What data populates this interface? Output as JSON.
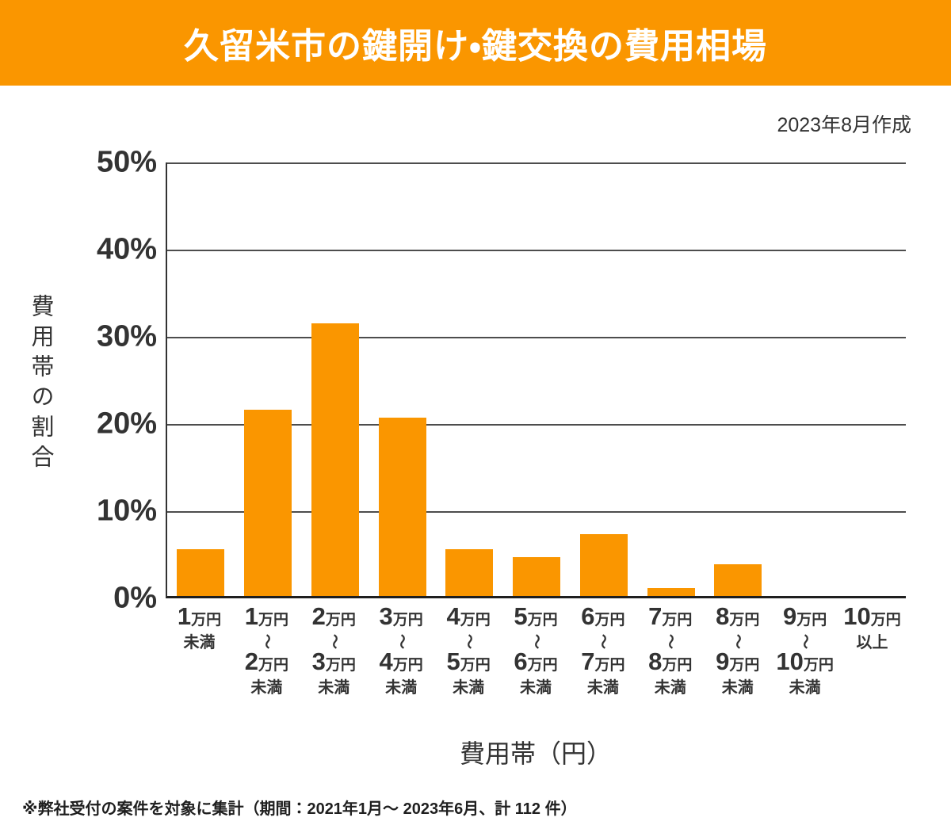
{
  "header": {
    "title": "久留米市の鍵開け・鍵交換の費用相場",
    "bg_color": "#FA9600",
    "text_color": "#FFFFFF"
  },
  "meta": {
    "created_label": "2023年8月作成"
  },
  "chart_data": {
    "type": "bar",
    "title": "久留米市の鍵開け・鍵交換の費用相場",
    "xlabel": "費用帯（円）",
    "ylabel": "費用帯の割合",
    "ylim": [
      0,
      50
    ],
    "ytick_step": 10,
    "ytick_suffix": "%",
    "grid": true,
    "legend": "none",
    "bar_color": "#FA9600",
    "categories": [
      [
        "1万円",
        "未満"
      ],
      [
        "1万円",
        "〜",
        "2万円",
        "未満"
      ],
      [
        "2万円",
        "〜",
        "3万円",
        "未満"
      ],
      [
        "3万円",
        "〜",
        "4万円",
        "未満"
      ],
      [
        "4万円",
        "〜",
        "5万円",
        "未満"
      ],
      [
        "5万円",
        "〜",
        "6万円",
        "未満"
      ],
      [
        "6万円",
        "〜",
        "7万円",
        "未満"
      ],
      [
        "7万円",
        "〜",
        "8万円",
        "未満"
      ],
      [
        "8万円",
        "〜",
        "9万円",
        "未満"
      ],
      [
        "9万円",
        "〜",
        "10万円",
        "未満"
      ],
      [
        "10万円",
        "以上"
      ]
    ],
    "values": [
      5.4,
      21.4,
      31.3,
      20.5,
      5.4,
      4.5,
      7.1,
      0.9,
      3.6,
      0,
      0
    ]
  },
  "footnote": "※弊社受付の案件を対象に集計（期間：2021年1月～ 2023年6月、計 112 件）"
}
